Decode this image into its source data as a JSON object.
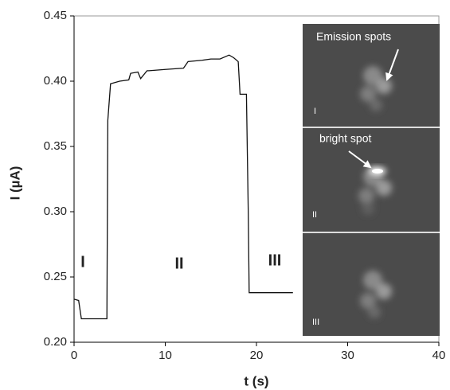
{
  "chart_data": {
    "type": "line",
    "xlabel": "t (s)",
    "ylabel": "I (µA)",
    "x": [
      0,
      0.5,
      0.8,
      3.6,
      3.7,
      4.0,
      5,
      6,
      6.2,
      7,
      7.3,
      8,
      8.2,
      10,
      12,
      12.5,
      14,
      15,
      16,
      17,
      17.5,
      18,
      18.2,
      18.9,
      19.1,
      19.2,
      24
    ],
    "series": [
      {
        "name": "I",
        "color": "#111111",
        "values": [
          0.233,
          0.232,
          0.218,
          0.218,
          0.37,
          0.398,
          0.4,
          0.401,
          0.406,
          0.407,
          0.402,
          0.408,
          0.408,
          0.409,
          0.41,
          0.415,
          0.416,
          0.417,
          0.417,
          0.42,
          0.418,
          0.415,
          0.39,
          0.39,
          0.3,
          0.238,
          0.238
        ]
      }
    ],
    "xlim": [
      0,
      40
    ],
    "ylim": [
      0.2,
      0.45
    ],
    "xticks": [
      0,
      10,
      20,
      30,
      40
    ],
    "yticks": [
      {
        "value": 0.2,
        "label": "0.20"
      },
      0.25,
      {
        "value": 0.3,
        "label": "0.30"
      },
      0.35,
      {
        "value": 0.4,
        "label": "0.40"
      },
      0.45
    ],
    "annotations": [
      "I",
      "II",
      "III"
    ],
    "inset": {
      "callouts": [
        "Emission spots",
        "bright spot"
      ],
      "panels": [
        "I",
        "II",
        "III"
      ]
    }
  }
}
